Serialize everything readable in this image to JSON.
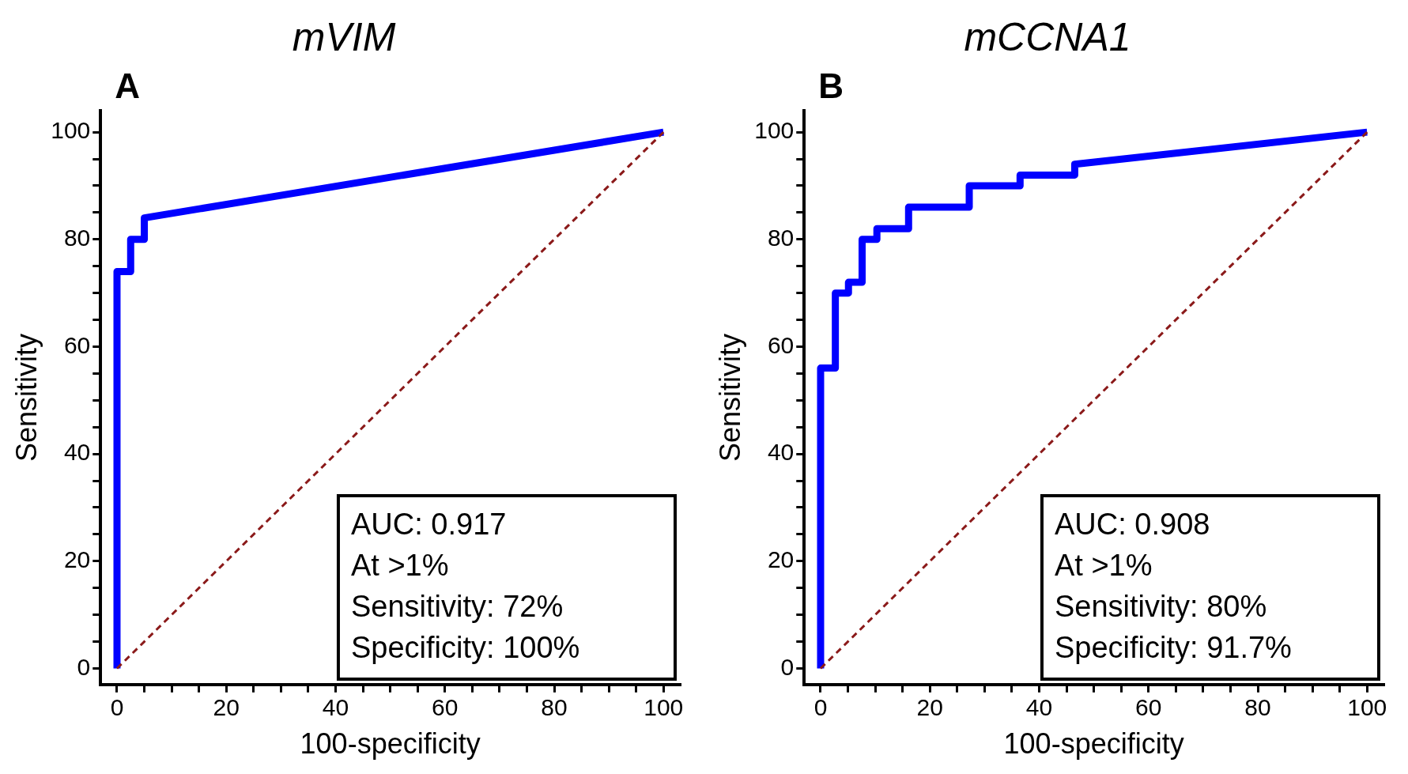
{
  "chart_data": [
    {
      "type": "line",
      "title": "mVIM",
      "xlabel": "100-specificity",
      "ylabel": "Sensitivity",
      "xlim": [
        -3,
        103
      ],
      "ylim": [
        -3,
        104
      ],
      "xticks": [
        0,
        {
          "value": 5,
          "label": null
        },
        {
          "value": 10,
          "label": null
        },
        {
          "value": 15,
          "label": null
        },
        20,
        {
          "value": 25,
          "label": null
        },
        {
          "value": 30,
          "label": null
        },
        {
          "value": 35,
          "label": null
        },
        40,
        {
          "value": 45,
          "label": null
        },
        {
          "value": 50,
          "label": null
        },
        {
          "value": 55,
          "label": null
        },
        60,
        {
          "value": 65,
          "label": null
        },
        {
          "value": 70,
          "label": null
        },
        {
          "value": 75,
          "label": null
        },
        80,
        {
          "value": 85,
          "label": null
        },
        {
          "value": 90,
          "label": null
        },
        {
          "value": 95,
          "label": null
        },
        100
      ],
      "yticks": [
        0,
        {
          "value": 5,
          "label": null
        },
        {
          "value": 10,
          "label": null
        },
        {
          "value": 15,
          "label": null
        },
        20,
        {
          "value": 25,
          "label": null
        },
        {
          "value": 30,
          "label": null
        },
        {
          "value": 35,
          "label": null
        },
        40,
        {
          "value": 45,
          "label": null
        },
        {
          "value": 50,
          "label": null
        },
        {
          "value": 55,
          "label": null
        },
        60,
        {
          "value": 65,
          "label": null
        },
        {
          "value": 70,
          "label": null
        },
        {
          "value": 75,
          "label": null
        },
        80,
        {
          "value": 85,
          "label": null
        },
        {
          "value": 90,
          "label": null
        },
        {
          "value": 95,
          "label": null
        },
        100
      ],
      "grid": false,
      "legend": false,
      "marker": "none",
      "series": [
        {
          "type": "step",
          "color": "#0000ff",
          "line_style": "solid",
          "x": [
            0,
            0,
            2.5,
            2.5,
            5,
            5,
            100
          ],
          "values": [
            0,
            74,
            74,
            80,
            80,
            84,
            100
          ]
        },
        {
          "type": "line",
          "color": "#8b1a1a",
          "line_style": "dashed",
          "x": [
            0,
            100
          ],
          "values": [
            0,
            100
          ]
        }
      ],
      "annotations": [
        "A",
        "AUC: 0.917",
        "At >1%",
        "Sensitivity: 72%",
        "Specificity: 100%"
      ]
    },
    {
      "type": "line",
      "title": "mCCNA1",
      "xlabel": "100-specificity",
      "ylabel": "Sensitivity",
      "xlim": [
        -3,
        103
      ],
      "ylim": [
        -3,
        104
      ],
      "xticks": [
        0,
        {
          "value": 5,
          "label": null
        },
        {
          "value": 10,
          "label": null
        },
        {
          "value": 15,
          "label": null
        },
        20,
        {
          "value": 25,
          "label": null
        },
        {
          "value": 30,
          "label": null
        },
        {
          "value": 35,
          "label": null
        },
        40,
        {
          "value": 45,
          "label": null
        },
        {
          "value": 50,
          "label": null
        },
        {
          "value": 55,
          "label": null
        },
        60,
        {
          "value": 65,
          "label": null
        },
        {
          "value": 70,
          "label": null
        },
        {
          "value": 75,
          "label": null
        },
        80,
        {
          "value": 85,
          "label": null
        },
        {
          "value": 90,
          "label": null
        },
        {
          "value": 95,
          "label": null
        },
        100
      ],
      "yticks": [
        0,
        {
          "value": 5,
          "label": null
        },
        {
          "value": 10,
          "label": null
        },
        {
          "value": 15,
          "label": null
        },
        20,
        {
          "value": 25,
          "label": null
        },
        {
          "value": 30,
          "label": null
        },
        {
          "value": 35,
          "label": null
        },
        40,
        {
          "value": 45,
          "label": null
        },
        {
          "value": 50,
          "label": null
        },
        {
          "value": 55,
          "label": null
        },
        60,
        {
          "value": 65,
          "label": null
        },
        {
          "value": 70,
          "label": null
        },
        {
          "value": 75,
          "label": null
        },
        80,
        {
          "value": 85,
          "label": null
        },
        {
          "value": 90,
          "label": null
        },
        {
          "value": 95,
          "label": null
        },
        100
      ],
      "grid": false,
      "legend": false,
      "marker": "none",
      "series": [
        {
          "type": "step",
          "color": "#0000ff",
          "line_style": "solid",
          "x": [
            0,
            0,
            2.7,
            2.7,
            5.1,
            5.1,
            7.6,
            7.6,
            10.3,
            10.3,
            16.1,
            16.1,
            27.2,
            27.2,
            36.5,
            36.5,
            46.5,
            46.5,
            100
          ],
          "values": [
            0,
            56,
            56,
            70,
            70,
            72,
            72,
            80,
            80,
            82,
            82,
            86,
            86,
            90,
            90,
            92,
            92,
            94,
            100
          ]
        },
        {
          "type": "line",
          "color": "#8b1a1a",
          "line_style": "dashed",
          "x": [
            0,
            100
          ],
          "values": [
            0,
            100
          ]
        }
      ],
      "annotations": [
        "B",
        "AUC: 0.908",
        "At >1%",
        "Sensitivity: 80%",
        "Specificity: 91.7%"
      ]
    }
  ]
}
